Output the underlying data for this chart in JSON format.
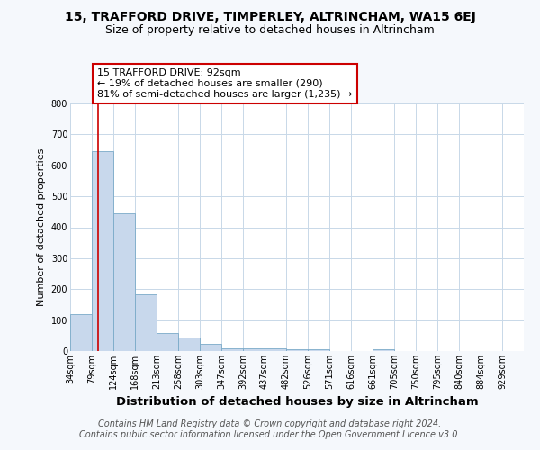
{
  "title": "15, TRAFFORD DRIVE, TIMPERLEY, ALTRINCHAM, WA15 6EJ",
  "subtitle": "Size of property relative to detached houses in Altrincham",
  "xlabel": "Distribution of detached houses by size in Altrincham",
  "ylabel": "Number of detached properties",
  "bin_labels": [
    "34sqm",
    "79sqm",
    "124sqm",
    "168sqm",
    "213sqm",
    "258sqm",
    "303sqm",
    "347sqm",
    "392sqm",
    "437sqm",
    "482sqm",
    "526sqm",
    "571sqm",
    "616sqm",
    "661sqm",
    "705sqm",
    "750sqm",
    "795sqm",
    "840sqm",
    "884sqm",
    "929sqm"
  ],
  "bar_heights": [
    120,
    645,
    445,
    183,
    58,
    43,
    22,
    10,
    10,
    10,
    6,
    5,
    0,
    0,
    7,
    0,
    0,
    0,
    0,
    0,
    0
  ],
  "bar_color": "#c8d8ec",
  "bar_edge_color": "#7aaac8",
  "annotation_text": "15 TRAFFORD DRIVE: 92sqm\n← 19% of detached houses are smaller (290)\n81% of semi-detached houses are larger (1,235) →",
  "annotation_box_color": "#ffffff",
  "annotation_box_edge_color": "#cc0000",
  "ylim": [
    0,
    800
  ],
  "yticks": [
    0,
    100,
    200,
    300,
    400,
    500,
    600,
    700,
    800
  ],
  "footer_line1": "Contains HM Land Registry data © Crown copyright and database right 2024.",
  "footer_line2": "Contains public sector information licensed under the Open Government Licence v3.0.",
  "bg_color": "#f5f8fc",
  "plot_bg_color": "#ffffff",
  "grid_color": "#c8d8e8",
  "title_fontsize": 10,
  "subtitle_fontsize": 9,
  "xlabel_fontsize": 9.5,
  "ylabel_fontsize": 8,
  "tick_fontsize": 7,
  "annotation_fontsize": 8,
  "footer_fontsize": 7
}
